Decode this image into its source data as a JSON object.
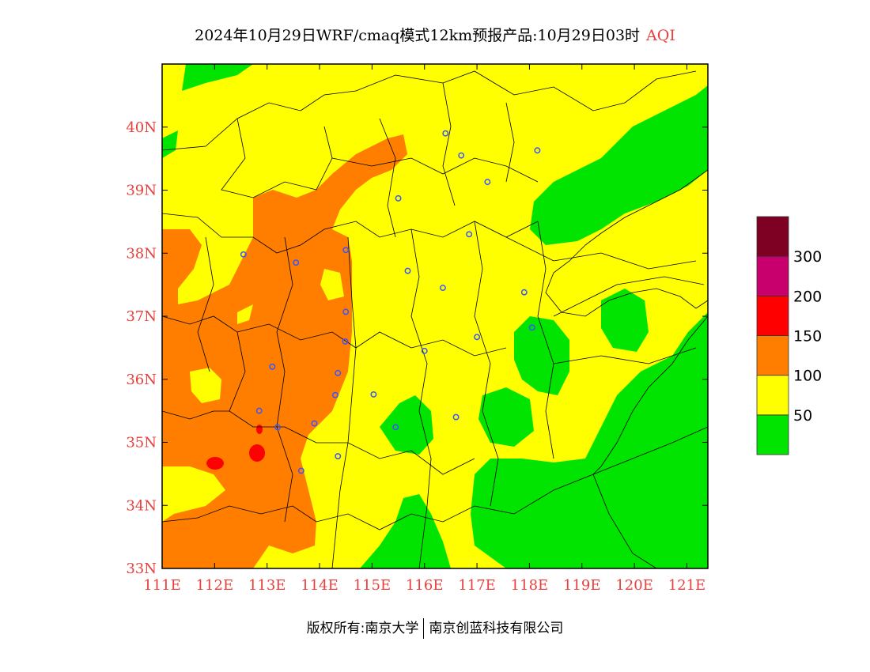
{
  "header": {
    "title": "2024年10月29日WRF/cmaq模式12km预报产品:10月29日03时",
    "variable": "AQI"
  },
  "map": {
    "lon_range": [
      111,
      121.4
    ],
    "lat_range": [
      33,
      41
    ],
    "lon_ticks": [
      {
        "lon": 111,
        "label": "111E"
      },
      {
        "lon": 112,
        "label": "112E"
      },
      {
        "lon": 113,
        "label": "113E"
      },
      {
        "lon": 114,
        "label": "114E"
      },
      {
        "lon": 115,
        "label": "115E"
      },
      {
        "lon": 116,
        "label": "116E"
      },
      {
        "lon": 117,
        "label": "117E"
      },
      {
        "lon": 118,
        "label": "118E"
      },
      {
        "lon": 119,
        "label": "119E"
      },
      {
        "lon": 120,
        "label": "120E"
      },
      {
        "lon": 121,
        "label": "121E"
      }
    ],
    "lat_ticks": [
      {
        "lat": 33,
        "label": "33N"
      },
      {
        "lat": 34,
        "label": "34N"
      },
      {
        "lat": 35,
        "label": "35N"
      },
      {
        "lat": 36,
        "label": "36N"
      },
      {
        "lat": 37,
        "label": "37N"
      },
      {
        "lat": 38,
        "label": "38N"
      },
      {
        "lat": 39,
        "label": "39N"
      },
      {
        "lat": 40,
        "label": "40N"
      }
    ],
    "stations": [
      [
        116.4,
        39.9
      ],
      [
        116.7,
        39.55
      ],
      [
        117.2,
        39.13
      ],
      [
        118.15,
        39.63
      ],
      [
        115.5,
        38.87
      ],
      [
        116.85,
        38.3
      ],
      [
        112.55,
        37.98
      ],
      [
        113.55,
        37.85
      ],
      [
        114.5,
        38.05
      ],
      [
        115.68,
        37.72
      ],
      [
        116.35,
        37.45
      ],
      [
        117.9,
        37.38
      ],
      [
        118.05,
        36.82
      ],
      [
        117.0,
        36.67
      ],
      [
        114.5,
        37.07
      ],
      [
        114.49,
        36.6
      ],
      [
        116.0,
        36.45
      ],
      [
        113.1,
        36.2
      ],
      [
        114.35,
        36.1
      ],
      [
        114.3,
        35.75
      ],
      [
        115.03,
        35.76
      ],
      [
        112.85,
        35.5
      ],
      [
        113.2,
        35.24
      ],
      [
        113.9,
        35.3
      ],
      [
        115.45,
        35.24
      ],
      [
        116.6,
        35.4
      ],
      [
        114.35,
        34.78
      ],
      [
        113.65,
        34.55
      ]
    ]
  },
  "legend": {
    "bands": [
      {
        "color": "#00e400",
        "from": 0,
        "to": 50
      },
      {
        "color": "#ffff00",
        "from": 50,
        "to": 100
      },
      {
        "color": "#ff7e00",
        "from": 100,
        "to": 150
      },
      {
        "color": "#ff0000",
        "from": 150,
        "to": 200
      },
      {
        "color": "#c8006e",
        "from": 200,
        "to": 300
      },
      {
        "color": "#7e0023",
        "from": 300,
        "to": 500
      }
    ],
    "labels": [
      "50",
      "100",
      "150",
      "200",
      "300"
    ]
  },
  "colors": {
    "green": "#00e400",
    "yellow": "#ffff00",
    "orange": "#ff7e00",
    "red": "#ff0000",
    "tick": "#e8403c",
    "station": "#3a55ff"
  },
  "footer": {
    "left": "版权所有:南京大学",
    "right": "南京创蓝科技有限公司"
  }
}
